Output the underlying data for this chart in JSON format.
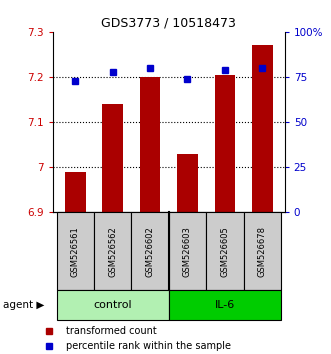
{
  "title": "GDS3773 / 10518473",
  "samples": [
    "GSM526561",
    "GSM526562",
    "GSM526602",
    "GSM526603",
    "GSM526605",
    "GSM526678"
  ],
  "red_values": [
    6.99,
    7.14,
    7.2,
    7.03,
    7.205,
    7.27
  ],
  "blue_values": [
    73,
    78,
    80,
    74,
    79,
    80
  ],
  "ylim_left": [
    6.9,
    7.3
  ],
  "ylim_right": [
    0,
    100
  ],
  "yticks_left": [
    6.9,
    7.0,
    7.1,
    7.2,
    7.3
  ],
  "ytick_labels_left": [
    "6.9",
    "7",
    "7.1",
    "7.2",
    "7.3"
  ],
  "yticks_right": [
    0,
    25,
    50,
    75,
    100
  ],
  "ytick_labels_right": [
    "0",
    "25",
    "50",
    "75",
    "100%"
  ],
  "groups": [
    {
      "label": "control",
      "indices": [
        0,
        1,
        2
      ],
      "color": "#b2f0b2"
    },
    {
      "label": "IL-6",
      "indices": [
        3,
        4,
        5
      ],
      "color": "#00cc00"
    }
  ],
  "bar_color": "#aa0000",
  "dot_color": "#0000cc",
  "grid_color": "#000000",
  "bg_color": "#ffffff",
  "sample_box_color": "#cccccc",
  "bar_width": 0.55
}
